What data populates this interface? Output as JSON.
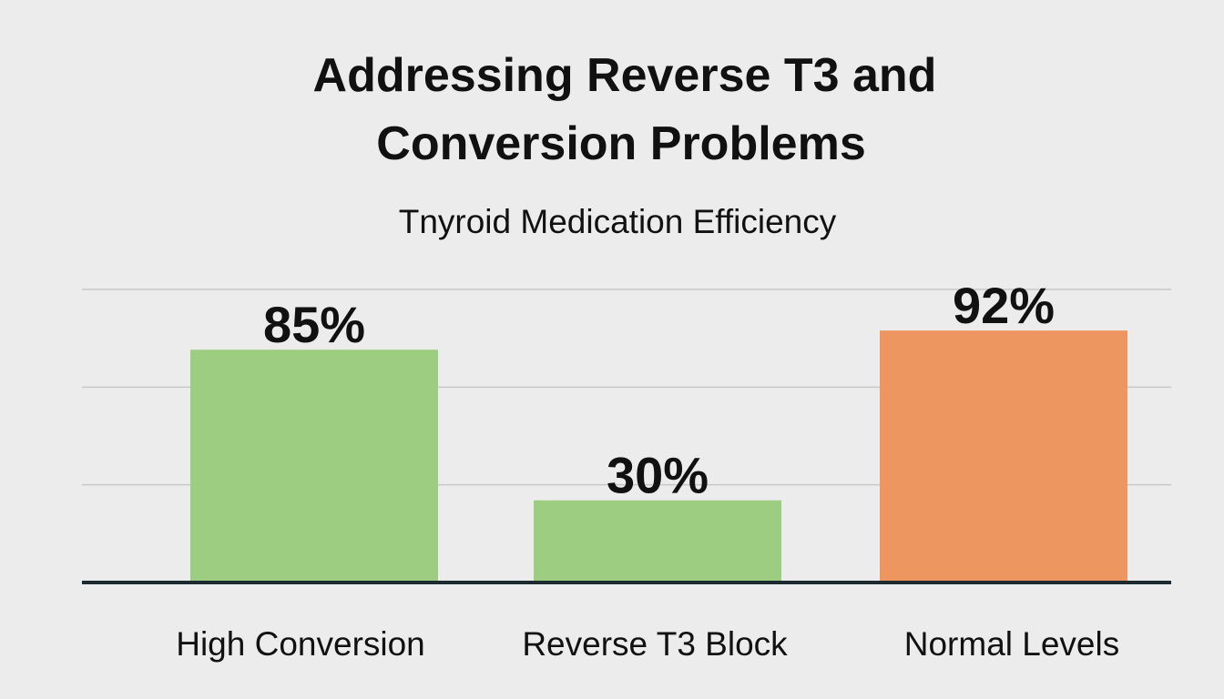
{
  "chart_data": {
    "type": "bar",
    "title": [
      "Addressing Reverse T3 and",
      "Conversion Problems"
    ],
    "subtitle": "Tnyroid Medication Efficiency",
    "categories": [
      "High Conversion",
      "Reverse T3 Block",
      "Normal Levels"
    ],
    "values": [
      85,
      30,
      92
    ],
    "data_labels": [
      "85%",
      "30%",
      "92%"
    ],
    "colors": [
      "#9dcd80",
      "#9dcd80",
      "#ee9660"
    ],
    "xlabel": "",
    "ylabel": "",
    "ylim": [
      0,
      107
    ],
    "grid": true,
    "legend": "none"
  }
}
